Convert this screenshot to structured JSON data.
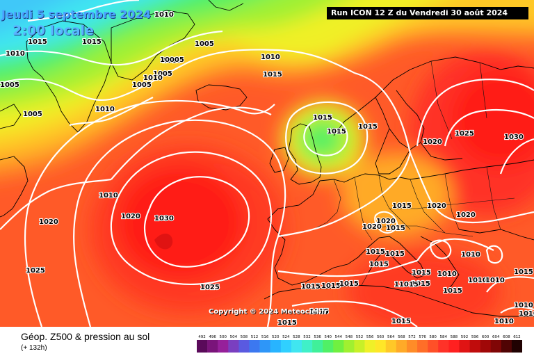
{
  "header": {
    "date": "Jeudi 5 septembre 2024",
    "time": "2:00 locale",
    "run": "Run ICON 12 Z du Vendredi 30 août 2024"
  },
  "footer": {
    "variable": "Géop. Z500 & pression au sol",
    "lead": "(+ 132h)",
    "copyright": "Copyright © 2024 Meteociel.fr"
  },
  "legend": {
    "values": [
      "492",
      "496",
      "500",
      "504",
      "508",
      "512",
      "516",
      "520",
      "524",
      "528",
      "532",
      "536",
      "540",
      "544",
      "548",
      "552",
      "556",
      "560",
      "564",
      "568",
      "572",
      "576",
      "580",
      "584",
      "588",
      "592",
      "596",
      "600",
      "604",
      "608",
      "612"
    ],
    "colors": [
      "#5a0a5a",
      "#7a147a",
      "#96209a",
      "#7a3fc0",
      "#5a5ae0",
      "#3c78f0",
      "#2e96f8",
      "#28b4ff",
      "#30d0ff",
      "#40e6f0",
      "#40f0c8",
      "#40f09a",
      "#50f066",
      "#70f040",
      "#a0f030",
      "#c8f028",
      "#f0f028",
      "#ffe628",
      "#ffc828",
      "#ffaa28",
      "#ff8c28",
      "#ff6e28",
      "#ff5028",
      "#ff3228",
      "#ff2020",
      "#e01414",
      "#c00c0c",
      "#a00808",
      "#800606",
      "#500404",
      "#200202"
    ]
  },
  "isobar_labels": [
    {
      "text": "1010"
    },
    {
      "text": "1015"
    },
    {
      "text": "1015"
    },
    {
      "text": "1005"
    },
    {
      "text": "1010"
    },
    {
      "text": "10005"
    },
    {
      "text": "1005"
    },
    {
      "text": "1010"
    },
    {
      "text": "1005"
    },
    {
      "text": "1005"
    },
    {
      "text": "1010"
    },
    {
      "text": "1005"
    },
    {
      "text": "1010"
    },
    {
      "text": "1010"
    },
    {
      "text": "1015"
    },
    {
      "text": "1015"
    },
    {
      "text": "1015"
    },
    {
      "text": "1015"
    },
    {
      "text": "1020"
    },
    {
      "text": "1025"
    },
    {
      "text": "1030"
    },
    {
      "text": "1010"
    },
    {
      "text": "1020"
    },
    {
      "text": "1030"
    },
    {
      "text": "1020"
    },
    {
      "text": "1025"
    },
    {
      "text": "1025"
    },
    {
      "text": "1015"
    },
    {
      "text": "1020"
    },
    {
      "text": "1020"
    },
    {
      "text": "1020"
    },
    {
      "text": "1015"
    },
    {
      "text": "1020"
    },
    {
      "text": "1015"
    },
    {
      "text": "1015"
    },
    {
      "text": "1015"
    },
    {
      "text": "1015"
    },
    {
      "text": "1015"
    },
    {
      "text": "1015"
    },
    {
      "text": "1015"
    },
    {
      "text": "1015"
    },
    {
      "text": "1010"
    },
    {
      "text": "1010"
    },
    {
      "text": "1010"
    },
    {
      "text": "1015"
    },
    {
      "text": "11015"
    },
    {
      "text": "1015"
    },
    {
      "text": "1015"
    },
    {
      "text": "1015"
    },
    {
      "text": "1015"
    },
    {
      "text": "1010"
    },
    {
      "text": "1010"
    },
    {
      "text": "1010"
    },
    {
      "text": "1010"
    }
  ]
}
